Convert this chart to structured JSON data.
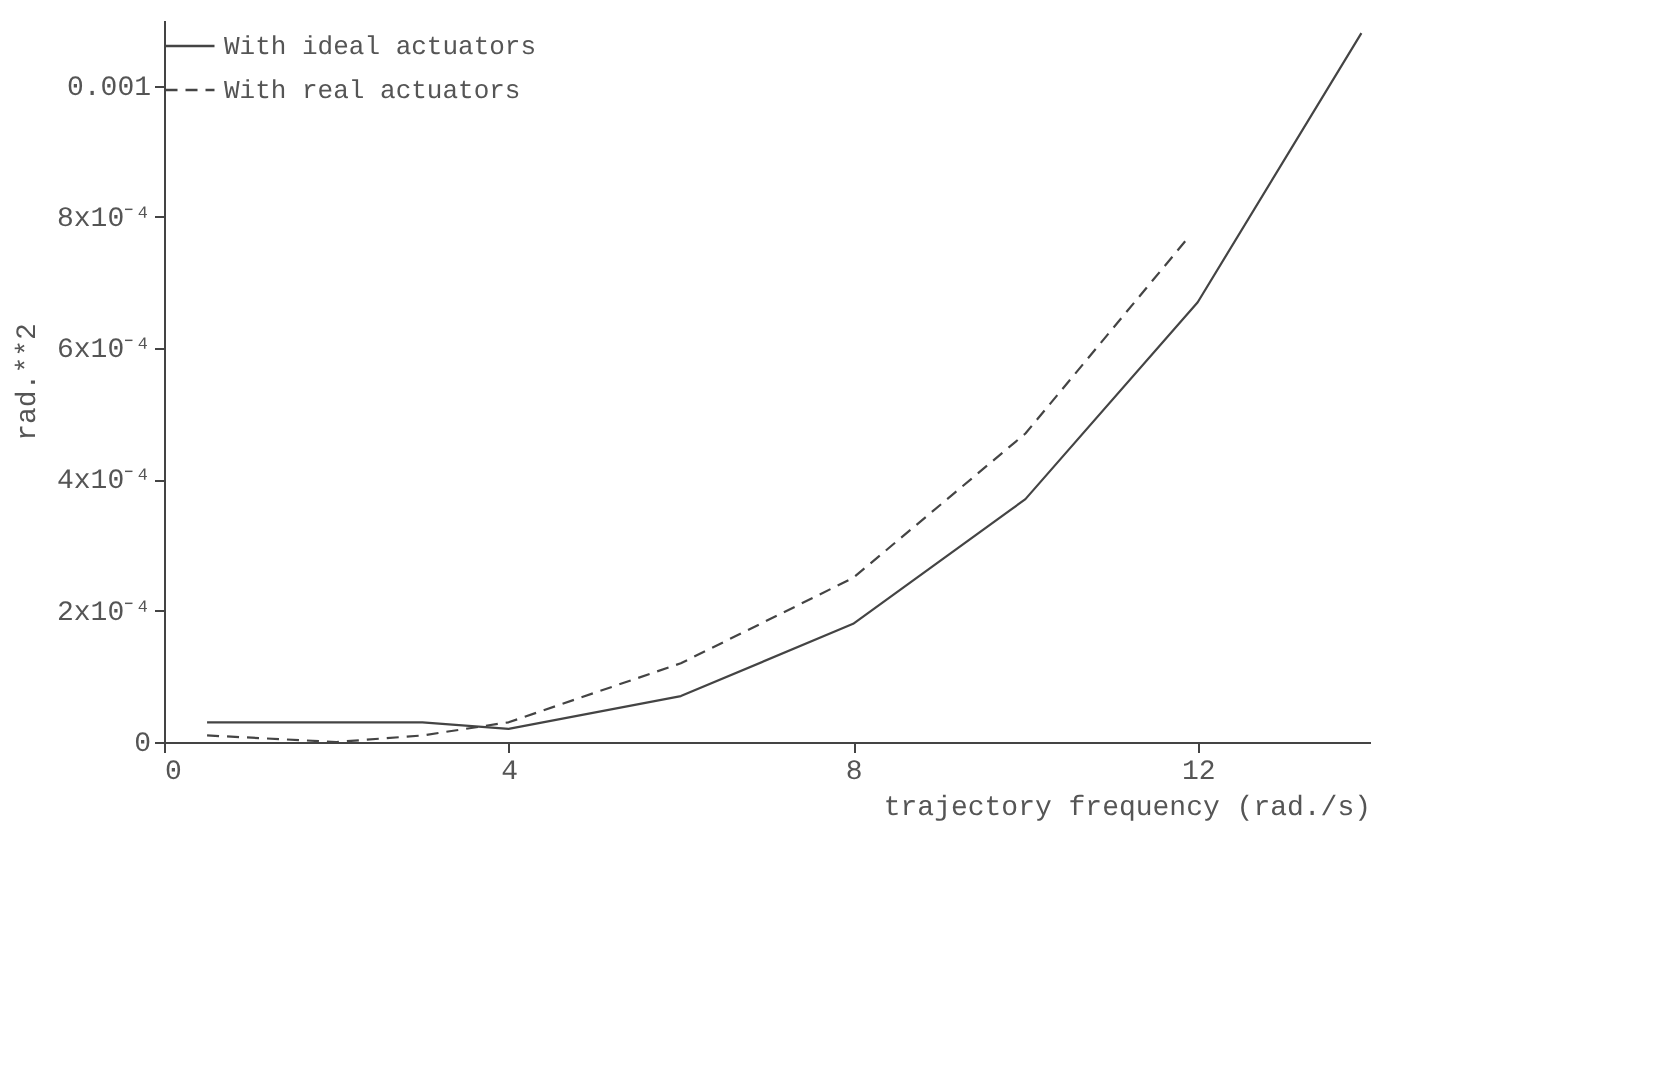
{
  "chart_data": {
    "type": "line",
    "xlabel": "trajectory frequency (rad./s)",
    "ylabel": "rad.**2",
    "xlim": [
      0,
      14
    ],
    "ylim": [
      0,
      0.0011
    ],
    "xticks": [
      0,
      4,
      8,
      12
    ],
    "yticks": [
      {
        "value": 0,
        "label": "0"
      },
      {
        "value": 0.0002,
        "label": "2x10⁻⁴"
      },
      {
        "value": 0.0004,
        "label": "4x10⁻⁴"
      },
      {
        "value": 0.0006,
        "label": "6x10⁻⁴"
      },
      {
        "value": 0.0008,
        "label": "8x10⁻⁴"
      },
      {
        "value": 0.001,
        "label": "0.001"
      }
    ],
    "grid": false,
    "legend": "top left",
    "marker": "none",
    "series": [
      {
        "name": "With ideal actuators",
        "color": "#444444",
        "line_style": "solid",
        "x": [
          0.5,
          1,
          2,
          3,
          4,
          6,
          8,
          10,
          12,
          13.9
        ],
        "values": [
          3e-05,
          3e-05,
          3e-05,
          3e-05,
          2e-05,
          7e-05,
          0.00018,
          0.00037,
          0.00067,
          0.00108
        ]
      },
      {
        "name": "With real actuators",
        "color": "#444444",
        "line_style": "dashed",
        "x": [
          0.5,
          2,
          3,
          3.5,
          4,
          6,
          8,
          10,
          11.9
        ],
        "values": [
          1e-05,
          0.0,
          1e-05,
          2e-05,
          3e-05,
          0.00012,
          0.00025,
          0.00047,
          0.00077
        ]
      }
    ]
  }
}
